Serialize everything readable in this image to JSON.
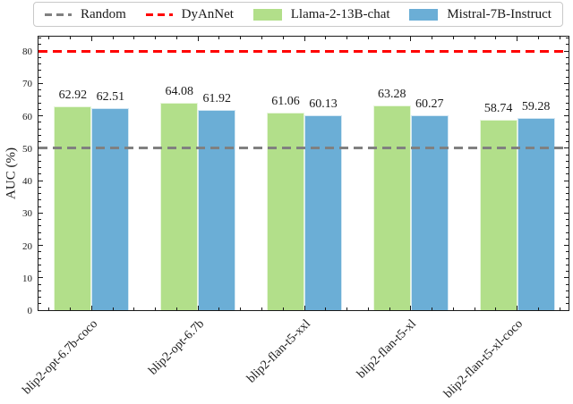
{
  "legend": {
    "items": [
      {
        "label": "Random",
        "type": "dashed-line",
        "color": "#808080"
      },
      {
        "label": "DyAnNet",
        "type": "dashed-line",
        "color": "#ff0000"
      },
      {
        "label": "Llama-2-13B-chat",
        "type": "patch",
        "color": "#b2df8a"
      },
      {
        "label": "Mistral-7B-Instruct",
        "type": "patch",
        "color": "#6baed6"
      }
    ]
  },
  "chart_data": {
    "type": "bar",
    "title": "",
    "xlabel": "",
    "ylabel": "AUC (%)",
    "ylim": [
      0,
      85
    ],
    "yticks": [
      0,
      10,
      20,
      30,
      40,
      50,
      60,
      70,
      80
    ],
    "y_minor_step": 2,
    "grid": false,
    "legend_position": "top",
    "categories": [
      "blip2-opt-6.7b-coco",
      "blip2-opt-6.7b",
      "blip2-flan-t5-xxl",
      "blip2-flan-t5-xl",
      "blip2-flan-t5-xl-coco"
    ],
    "series": [
      {
        "name": "Llama-2-13B-chat",
        "color": "#b2df8a",
        "values": [
          62.92,
          64.08,
          61.06,
          63.28,
          58.74
        ]
      },
      {
        "name": "Mistral-7B-Instruct",
        "color": "#6baed6",
        "values": [
          62.51,
          61.92,
          60.13,
          60.27,
          59.28
        ]
      }
    ],
    "hlines": [
      {
        "name": "Random",
        "value": 50,
        "color": "#808080",
        "style": "dashed"
      },
      {
        "name": "DyAnNet",
        "value": 80,
        "color": "#ff0000",
        "style": "dashed"
      }
    ],
    "bar_value_labels": true
  }
}
